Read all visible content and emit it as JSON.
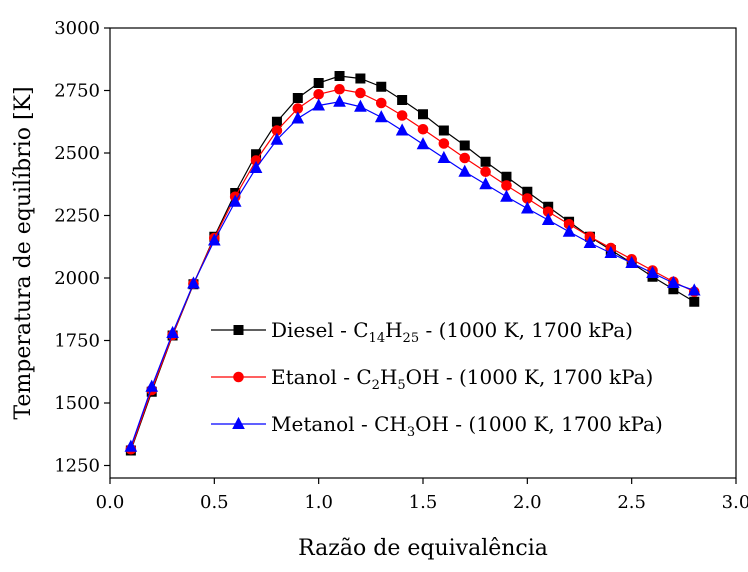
{
  "chart_data": {
    "type": "line",
    "xlabel": "Razão de equivalência",
    "ylabel": "Temperatura de equilíbrio [K]",
    "xlim": [
      0.0,
      3.0
    ],
    "ylim": [
      1200,
      3000
    ],
    "x_ticks": [
      "0.0",
      "0.5",
      "1.0",
      "1.5",
      "2.0",
      "2.5",
      "3.0"
    ],
    "y_ticks": [
      "1250",
      "1500",
      "1750",
      "2000",
      "2250",
      "2500",
      "2750",
      "3000"
    ],
    "x_tick_values": [
      0.0,
      0.5,
      1.0,
      1.5,
      2.0,
      2.5,
      3.0
    ],
    "y_tick_values": [
      1250,
      1500,
      1750,
      2000,
      2250,
      2500,
      2750,
      3000
    ],
    "grid": false,
    "legend_position": "lower-right",
    "x": [
      0.1,
      0.2,
      0.3,
      0.4,
      0.5,
      0.6,
      0.7,
      0.8,
      0.9,
      1.0,
      1.1,
      1.2,
      1.3,
      1.4,
      1.5,
      1.6,
      1.7,
      1.8,
      1.9,
      2.0,
      2.1,
      2.2,
      2.3,
      2.4,
      2.5,
      2.6,
      2.7,
      2.8
    ],
    "series": [
      {
        "legend_parts": [
          {
            "t": "Diesel - C",
            "sub": false
          },
          {
            "t": "14",
            "sub": true
          },
          {
            "t": "H",
            "sub": false
          },
          {
            "t": "25",
            "sub": true
          },
          {
            "t": " - (1000 K, 1700 kPa)",
            "sub": false
          }
        ],
        "color": "#000000",
        "marker": "square",
        "values": [
          1310,
          1545,
          1770,
          1975,
          2165,
          2340,
          2495,
          2625,
          2720,
          2780,
          2808,
          2798,
          2765,
          2712,
          2655,
          2590,
          2530,
          2465,
          2405,
          2345,
          2285,
          2225,
          2165,
          2112,
          2060,
          2005,
          1955,
          1905
        ]
      },
      {
        "legend_parts": [
          {
            "t": "Etanol - C",
            "sub": false
          },
          {
            "t": "2",
            "sub": true
          },
          {
            "t": "H",
            "sub": false
          },
          {
            "t": "5",
            "sub": true
          },
          {
            "t": "OH - (1000 K, 1700 kPa)",
            "sub": false
          }
        ],
        "color": "#ff0000",
        "marker": "circle",
        "values": [
          1315,
          1552,
          1772,
          1977,
          2160,
          2325,
          2470,
          2590,
          2678,
          2735,
          2755,
          2740,
          2700,
          2650,
          2595,
          2538,
          2480,
          2425,
          2370,
          2318,
          2265,
          2215,
          2165,
          2120,
          2075,
          2030,
          1985,
          1945
        ]
      },
      {
        "legend_parts": [
          {
            "t": "Metanol - CH",
            "sub": false
          },
          {
            "t": "3",
            "sub": true
          },
          {
            "t": "OH - (1000 K, 1700 kPa)",
            "sub": false
          }
        ],
        "color": "#0000ff",
        "marker": "triangle",
        "values": [
          1325,
          1565,
          1780,
          1978,
          2150,
          2305,
          2440,
          2553,
          2638,
          2690,
          2705,
          2685,
          2643,
          2590,
          2535,
          2480,
          2425,
          2375,
          2325,
          2278,
          2232,
          2185,
          2140,
          2100,
          2060,
          2020,
          1980,
          1950
        ]
      }
    ]
  }
}
